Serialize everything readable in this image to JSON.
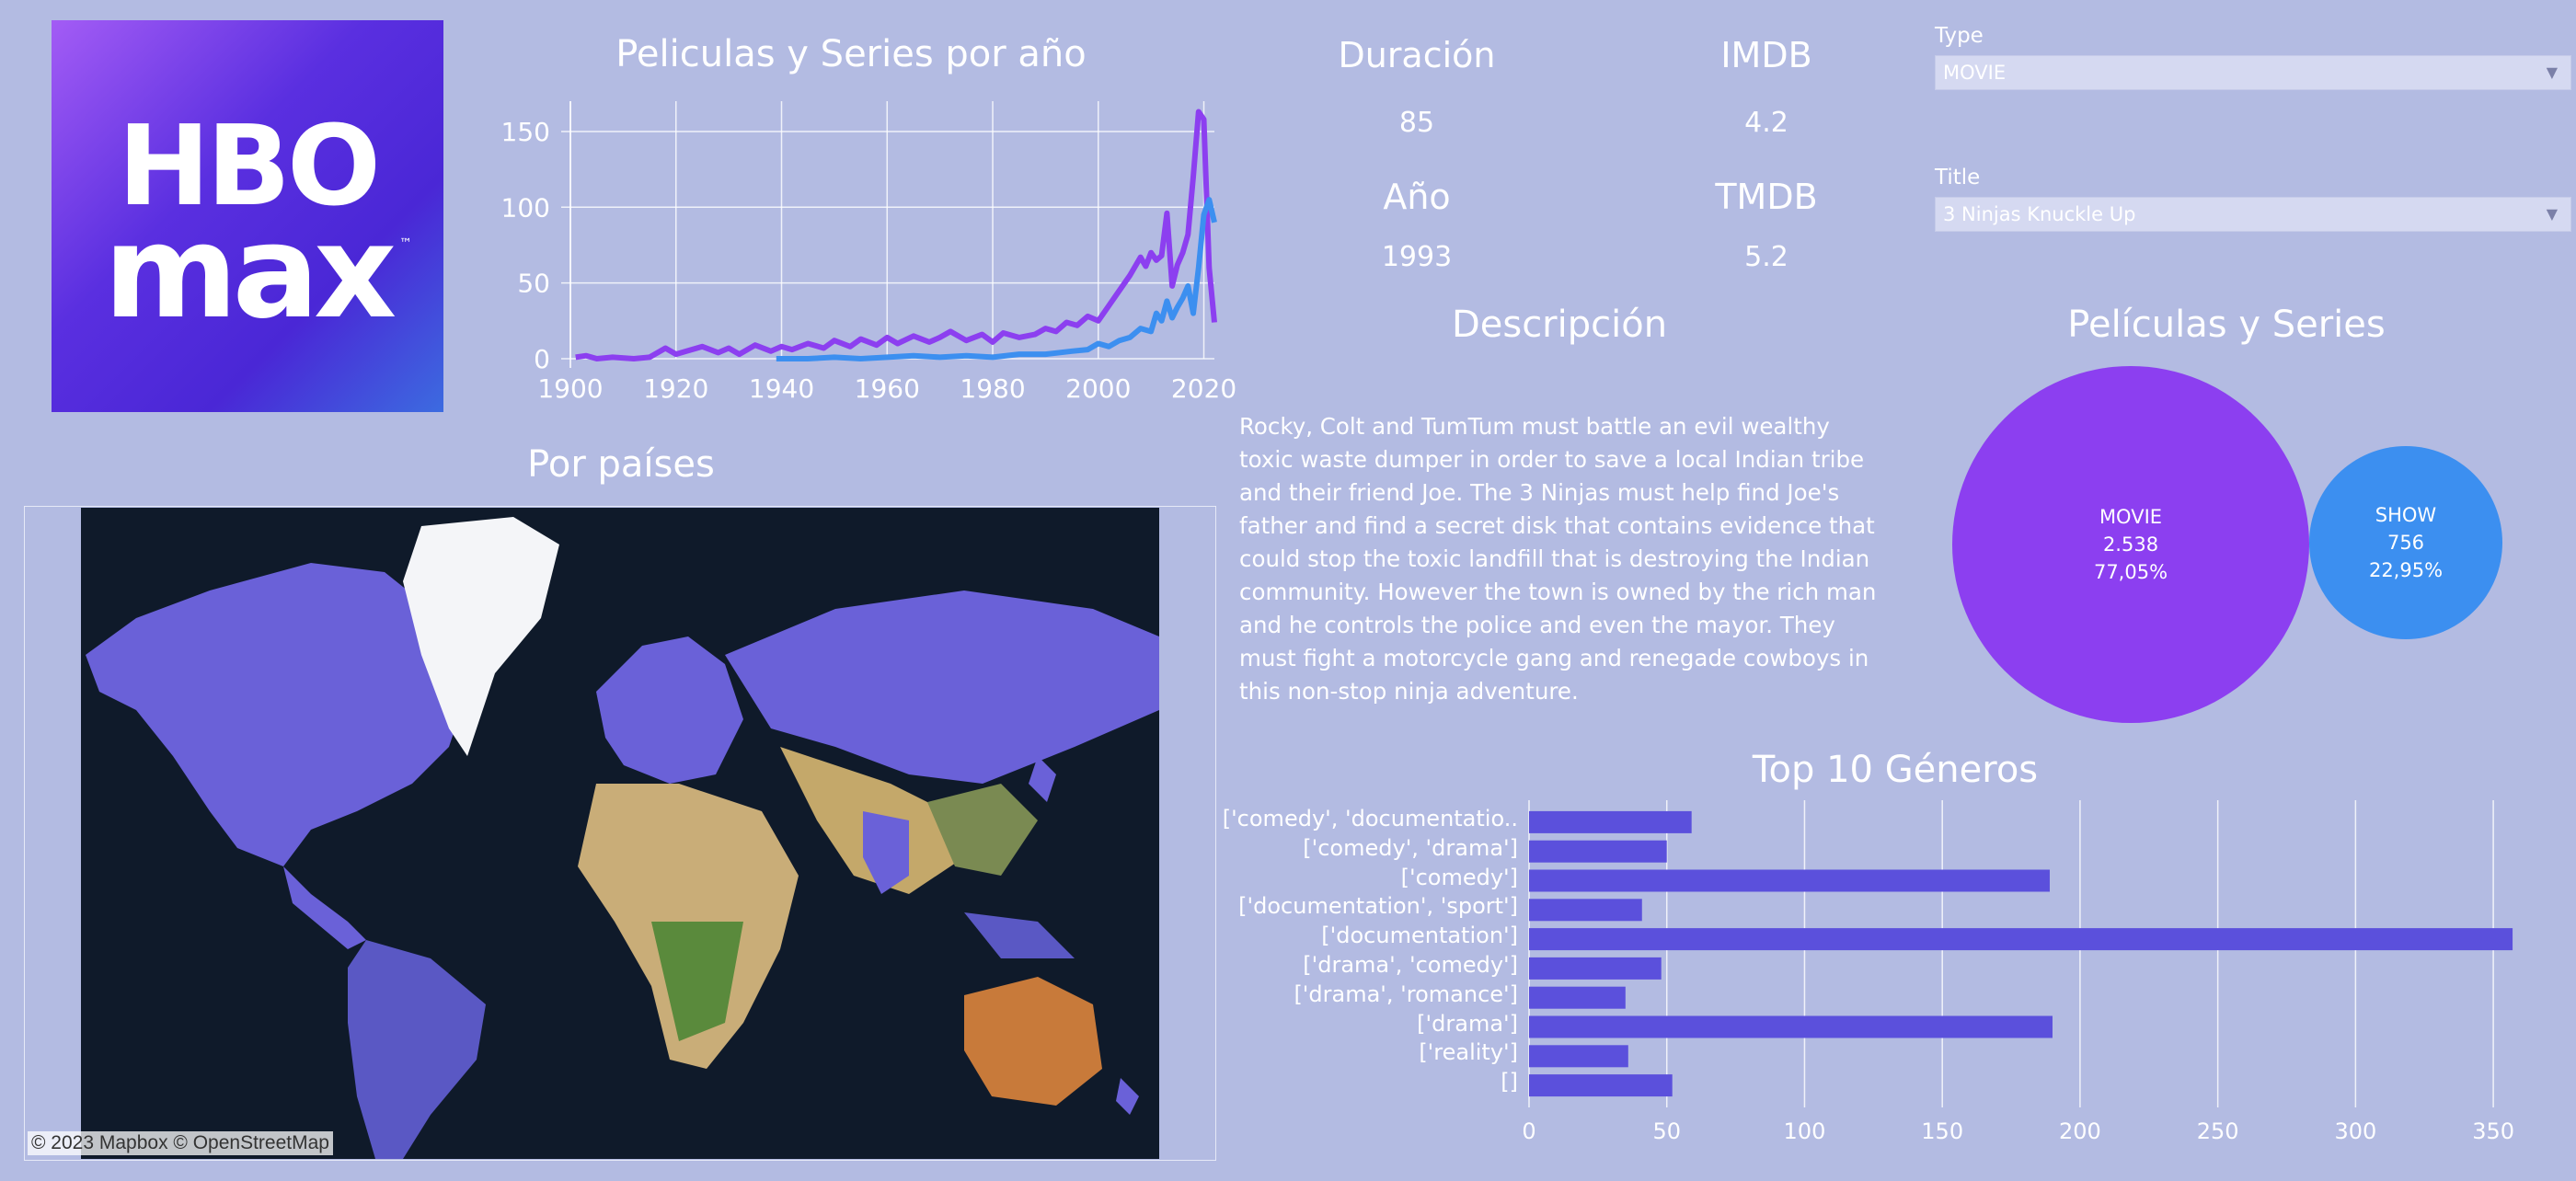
{
  "logo": {
    "line1": "HBO",
    "line2": "max",
    "tm": "™"
  },
  "line_chart": {
    "title": "Peliculas y Series por año",
    "x_ticks": [
      "1900",
      "1920",
      "1940",
      "1960",
      "1980",
      "2000",
      "2020"
    ],
    "y_ticks": [
      "0",
      "50",
      "100",
      "150"
    ]
  },
  "metrics": {
    "duration": {
      "label": "Duración",
      "value": "85"
    },
    "imdb": {
      "label": "IMDB",
      "value": "4.2"
    },
    "year": {
      "label": "Año",
      "value": "1993"
    },
    "tmdb": {
      "label": "TMDB",
      "value": "5.2"
    }
  },
  "filters": {
    "type": {
      "label": "Type",
      "value": "MOVIE"
    },
    "title": {
      "label": "Title",
      "value": "3 Ninjas Knuckle Up"
    }
  },
  "description": {
    "title": "Descripción",
    "text": "Rocky, Colt and TumTum must battle an evil wealthy toxic waste dumper in order to save a local Indian tribe and their friend Joe. The 3 Ninjas must help find Joe's father and find a secret disk that contains evidence that could stop the toxic landfill that is destroying the Indian community. However the town is owned by the rich man and he controls the police and even the mayor. They must fight a motorcycle gang and renegade cowboys in this non-stop ninja adventure."
  },
  "map": {
    "title": "Por países",
    "credit": "© 2023 Mapbox  © OpenStreetMap"
  },
  "bubbles": {
    "title": "Películas y Series",
    "movie": {
      "name": "MOVIE",
      "count": "2.538",
      "pct": "77,05%"
    },
    "show": {
      "name": "SHOW",
      "count": "756",
      "pct": "22,95%"
    }
  },
  "genres": {
    "title": "Top 10 Géneros",
    "x_ticks": [
      "0",
      "50",
      "100",
      "150",
      "200",
      "250",
      "300",
      "350"
    ]
  },
  "colors": {
    "background": "#b3bbe2",
    "movie": "#8c3ff0",
    "show": "#3c8ff0",
    "bar": "#5b50dc"
  },
  "chart_data": [
    {
      "type": "line",
      "title": "Peliculas y Series por año",
      "xlim": [
        1900,
        2022
      ],
      "ylim": [
        0,
        170
      ],
      "series": [
        {
          "color": "#8c3ff0",
          "points": [
            [
              1901,
              1
            ],
            [
              1903,
              2
            ],
            [
              1905,
              0
            ],
            [
              1908,
              1
            ],
            [
              1912,
              0
            ],
            [
              1915,
              1
            ],
            [
              1918,
              7
            ],
            [
              1920,
              3
            ],
            [
              1922,
              5
            ],
            [
              1925,
              8
            ],
            [
              1928,
              4
            ],
            [
              1930,
              7
            ],
            [
              1932,
              3
            ],
            [
              1935,
              9
            ],
            [
              1938,
              5
            ],
            [
              1940,
              8
            ],
            [
              1942,
              6
            ],
            [
              1945,
              10
            ],
            [
              1948,
              7
            ],
            [
              1950,
              12
            ],
            [
              1953,
              8
            ],
            [
              1955,
              13
            ],
            [
              1958,
              9
            ],
            [
              1960,
              14
            ],
            [
              1962,
              10
            ],
            [
              1965,
              15
            ],
            [
              1968,
              11
            ],
            [
              1970,
              14
            ],
            [
              1972,
              18
            ],
            [
              1975,
              12
            ],
            [
              1978,
              16
            ],
            [
              1980,
              11
            ],
            [
              1982,
              17
            ],
            [
              1985,
              14
            ],
            [
              1988,
              16
            ],
            [
              1990,
              20
            ],
            [
              1992,
              18
            ],
            [
              1994,
              24
            ],
            [
              1996,
              22
            ],
            [
              1998,
              28
            ],
            [
              2000,
              25
            ],
            [
              2002,
              35
            ],
            [
              2004,
              45
            ],
            [
              2006,
              55
            ],
            [
              2008,
              67
            ],
            [
              2009,
              61
            ],
            [
              2010,
              70
            ],
            [
              2011,
              65
            ],
            [
              2012,
              68
            ],
            [
              2013,
              96
            ],
            [
              2014,
              48
            ],
            [
              2015,
              62
            ],
            [
              2016,
              70
            ],
            [
              2017,
              82
            ],
            [
              2018,
              120
            ],
            [
              2019,
              163
            ],
            [
              2020,
              158
            ],
            [
              2021,
              60
            ],
            [
              2022,
              24
            ]
          ]
        },
        {
          "color": "#3c8ff0",
          "points": [
            [
              1939,
              0
            ],
            [
              1945,
              0
            ],
            [
              1950,
              1
            ],
            [
              1955,
              0
            ],
            [
              1960,
              1
            ],
            [
              1965,
              2
            ],
            [
              1970,
              1
            ],
            [
              1975,
              2
            ],
            [
              1980,
              1
            ],
            [
              1985,
              3
            ],
            [
              1990,
              3
            ],
            [
              1995,
              5
            ],
            [
              1998,
              6
            ],
            [
              2000,
              10
            ],
            [
              2002,
              8
            ],
            [
              2004,
              12
            ],
            [
              2006,
              14
            ],
            [
              2008,
              20
            ],
            [
              2010,
              18
            ],
            [
              2011,
              30
            ],
            [
              2012,
              25
            ],
            [
              2013,
              38
            ],
            [
              2014,
              27
            ],
            [
              2015,
              34
            ],
            [
              2016,
              40
            ],
            [
              2017,
              48
            ],
            [
              2018,
              30
            ],
            [
              2019,
              60
            ],
            [
              2020,
              95
            ],
            [
              2021,
              105
            ],
            [
              2022,
              90
            ]
          ]
        }
      ]
    },
    {
      "type": "bubble",
      "title": "Películas y Series",
      "categories": [
        "MOVIE",
        "SHOW"
      ],
      "values": [
        2538,
        756
      ],
      "percent": [
        77.05,
        22.95
      ]
    },
    {
      "type": "bar",
      "title": "Top 10 Géneros",
      "orientation": "horizontal",
      "categories": [
        "['comedy', 'documentatio..",
        "['comedy', 'drama']",
        "['comedy']",
        "['documentation', 'sport']",
        "['documentation']",
        "['drama', 'comedy']",
        "['drama', 'romance']",
        "['drama']",
        "['reality']",
        "[]"
      ],
      "values": [
        59,
        50,
        189,
        41,
        357,
        48,
        35,
        190,
        36,
        52
      ],
      "xlim": [
        0,
        370
      ]
    }
  ]
}
